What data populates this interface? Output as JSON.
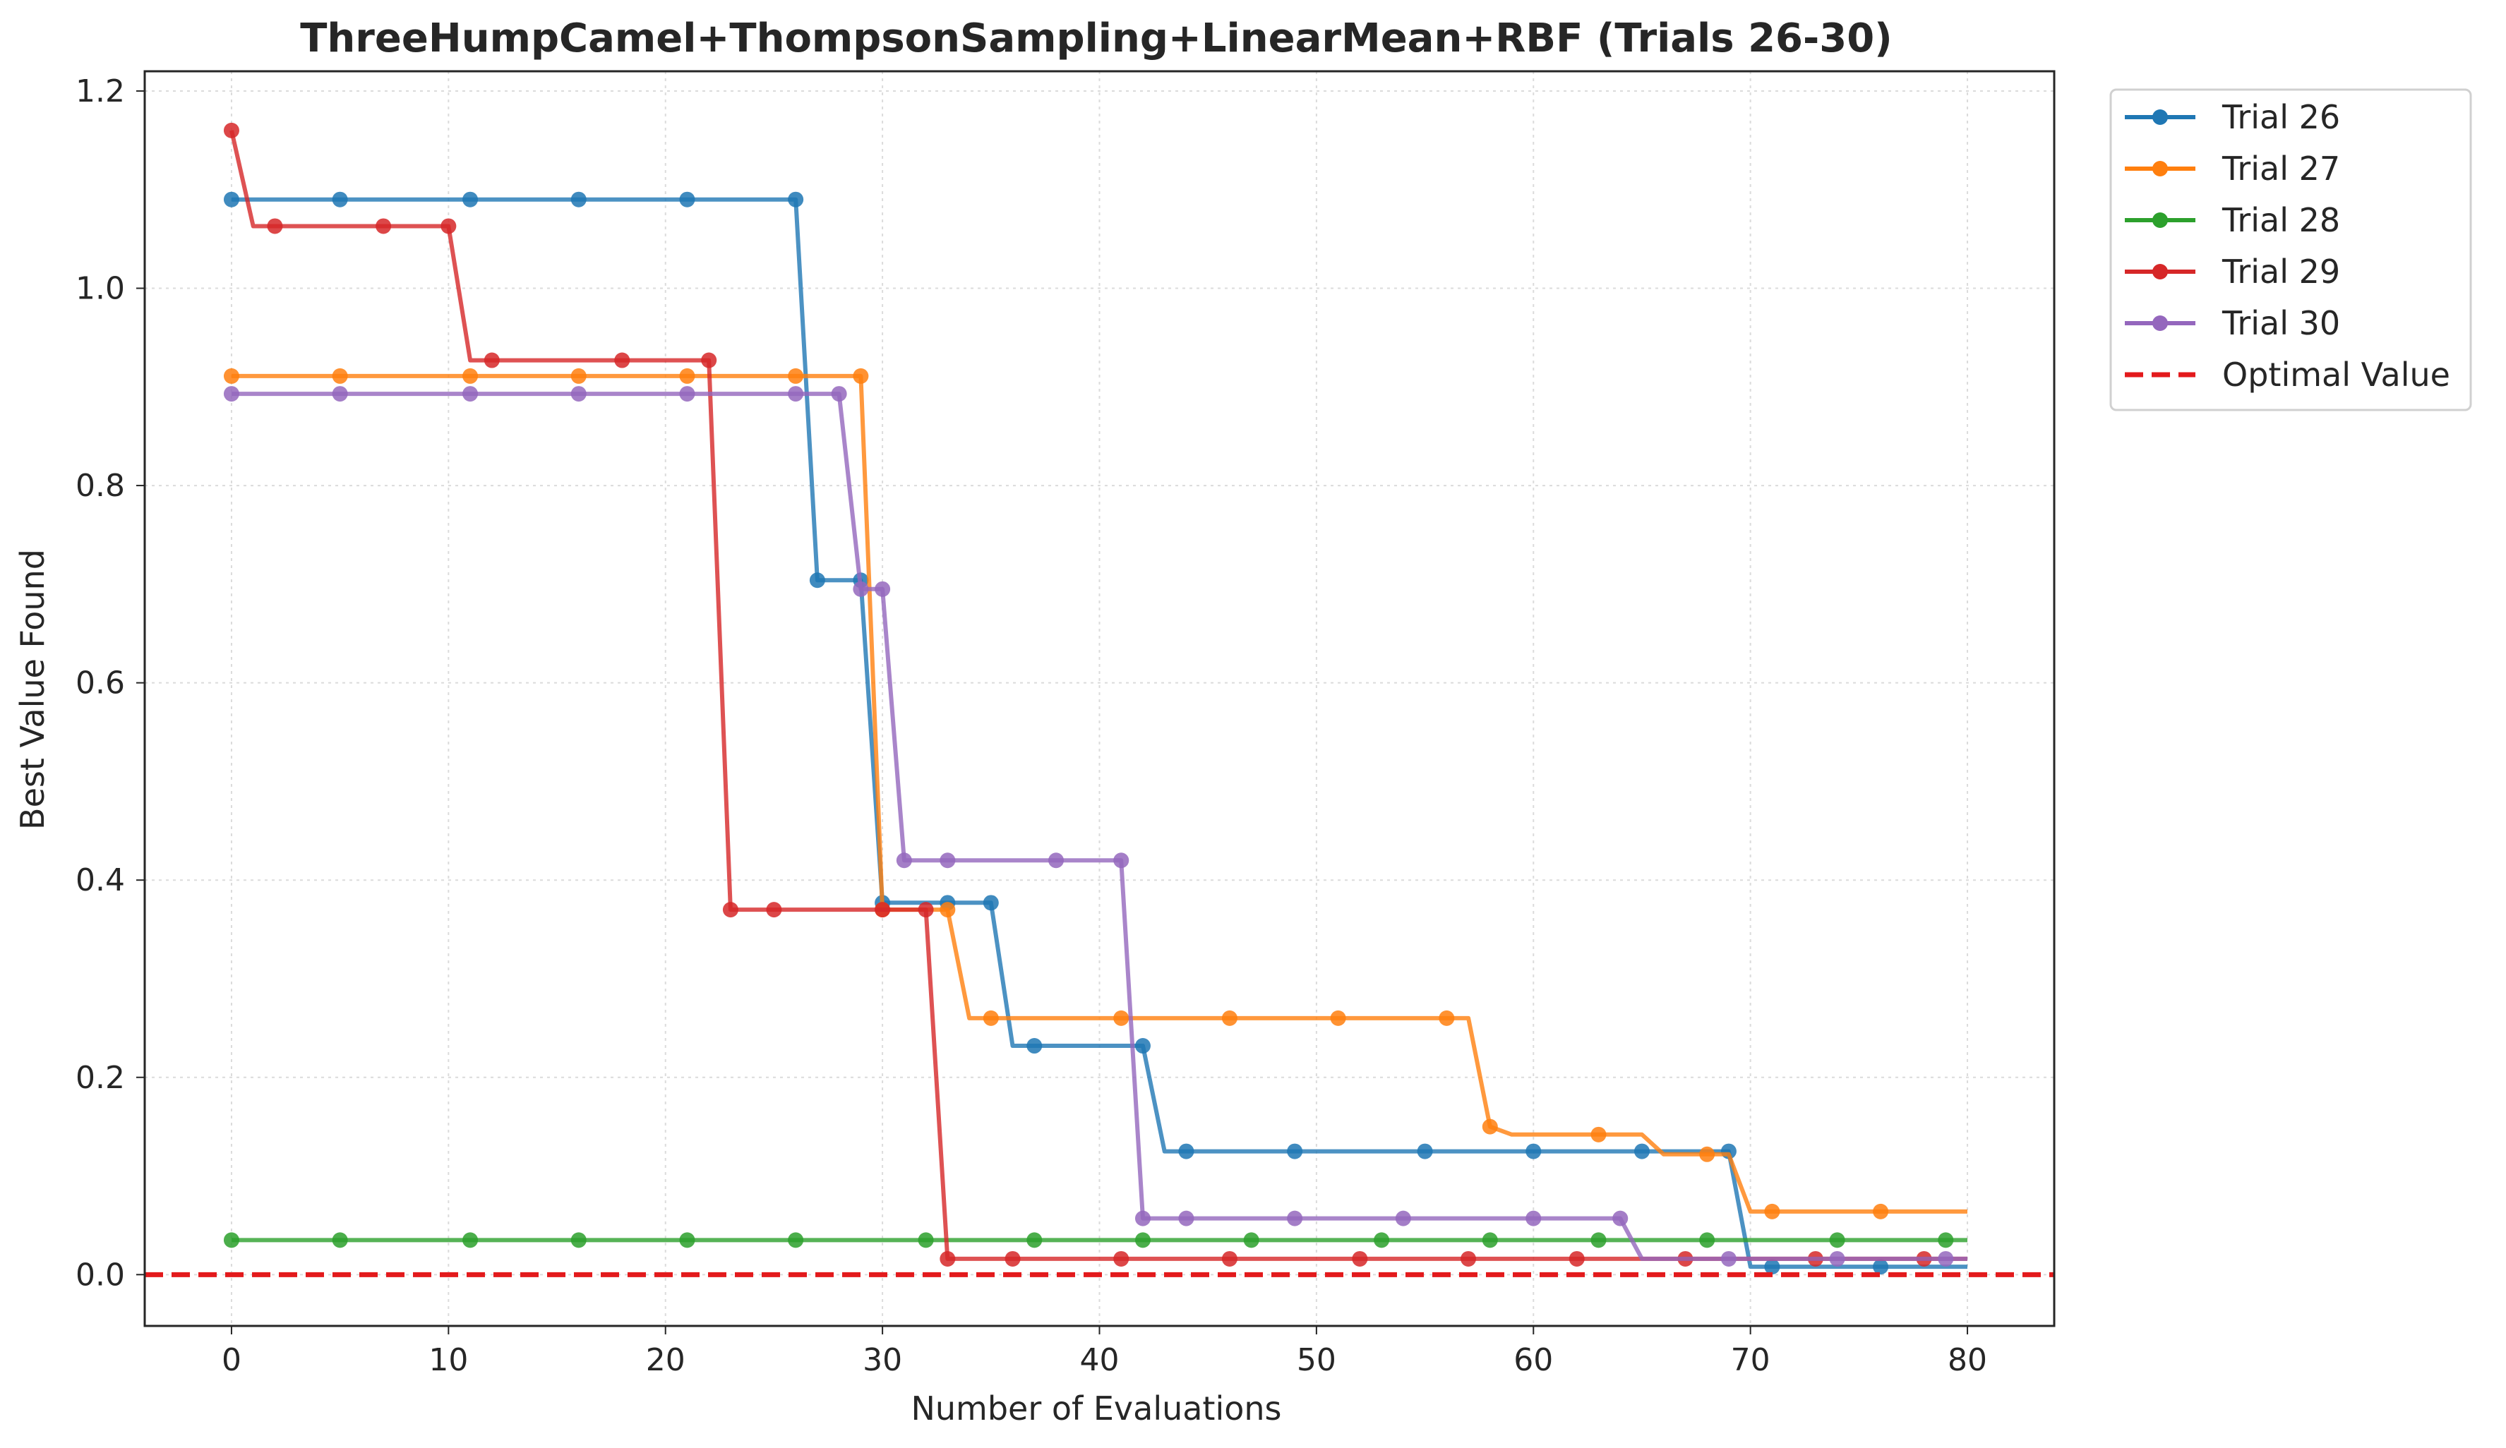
{
  "chart_data": {
    "type": "line",
    "title": "ThreeHumpCamel+ThompsonSampling+LinearMean+RBF (Trials 26-30)",
    "xlabel": "Number of Evaluations",
    "ylabel": "Best Value Found",
    "xlim": [
      -4,
      84
    ],
    "ylim": [
      -0.052,
      1.22
    ],
    "xticks": [
      0,
      10,
      20,
      30,
      40,
      50,
      60,
      70,
      80
    ],
    "yticks": [
      0.0,
      0.2,
      0.4,
      0.6,
      0.8,
      1.0,
      1.2
    ],
    "xtick_labels": [
      "0",
      "10",
      "20",
      "30",
      "40",
      "50",
      "60",
      "70",
      "80"
    ],
    "ytick_labels": [
      "0.0",
      "0.2",
      "0.4",
      "0.6",
      "0.8",
      "1.0",
      "1.2"
    ],
    "grid": true,
    "legend_position": "outside-top-right",
    "series": [
      {
        "name": "Trial 26",
        "color": "#1f77b4",
        "points": [
          [
            0,
            1.09
          ],
          [
            26,
            1.09
          ],
          [
            27,
            0.704
          ],
          [
            29,
            0.704
          ],
          [
            30,
            0.377
          ],
          [
            35,
            0.377
          ],
          [
            36,
            0.232
          ],
          [
            42,
            0.232
          ],
          [
            43,
            0.125
          ],
          [
            69,
            0.125
          ],
          [
            70,
            0.008
          ],
          [
            80,
            0.008
          ]
        ],
        "markers": [
          [
            0,
            1.09
          ],
          [
            5,
            1.09
          ],
          [
            11,
            1.09
          ],
          [
            16,
            1.09
          ],
          [
            21,
            1.09
          ],
          [
            26,
            1.09
          ],
          [
            27,
            0.704
          ],
          [
            29,
            0.704
          ],
          [
            30,
            0.377
          ],
          [
            33,
            0.377
          ],
          [
            35,
            0.377
          ],
          [
            37,
            0.232
          ],
          [
            42,
            0.232
          ],
          [
            44,
            0.125
          ],
          [
            49,
            0.125
          ],
          [
            55,
            0.125
          ],
          [
            60,
            0.125
          ],
          [
            65,
            0.125
          ],
          [
            69,
            0.125
          ],
          [
            71,
            0.008
          ],
          [
            76,
            0.008
          ]
        ]
      },
      {
        "name": "Trial 27",
        "color": "#ff7f0e",
        "points": [
          [
            0,
            0.911
          ],
          [
            29,
            0.911
          ],
          [
            30,
            0.37
          ],
          [
            33,
            0.37
          ],
          [
            34,
            0.26
          ],
          [
            57,
            0.26
          ],
          [
            58,
            0.15
          ],
          [
            59,
            0.142
          ],
          [
            65,
            0.142
          ],
          [
            66,
            0.122
          ],
          [
            69,
            0.122
          ],
          [
            70,
            0.064
          ],
          [
            80,
            0.064
          ]
        ],
        "markers": [
          [
            0,
            0.911
          ],
          [
            5,
            0.911
          ],
          [
            11,
            0.911
          ],
          [
            16,
            0.911
          ],
          [
            21,
            0.911
          ],
          [
            26,
            0.911
          ],
          [
            29,
            0.911
          ],
          [
            30,
            0.37
          ],
          [
            33,
            0.37
          ],
          [
            35,
            0.26
          ],
          [
            41,
            0.26
          ],
          [
            46,
            0.26
          ],
          [
            51,
            0.26
          ],
          [
            56,
            0.26
          ],
          [
            58,
            0.15
          ],
          [
            63,
            0.142
          ],
          [
            68,
            0.122
          ],
          [
            71,
            0.064
          ],
          [
            76,
            0.064
          ]
        ]
      },
      {
        "name": "Trial 28",
        "color": "#2ca02c",
        "points": [
          [
            0,
            0.035
          ],
          [
            80,
            0.035
          ]
        ],
        "markers": [
          [
            0,
            0.035
          ],
          [
            5,
            0.035
          ],
          [
            11,
            0.035
          ],
          [
            16,
            0.035
          ],
          [
            21,
            0.035
          ],
          [
            26,
            0.035
          ],
          [
            32,
            0.035
          ],
          [
            37,
            0.035
          ],
          [
            42,
            0.035
          ],
          [
            47,
            0.035
          ],
          [
            53,
            0.035
          ],
          [
            58,
            0.035
          ],
          [
            63,
            0.035
          ],
          [
            68,
            0.035
          ],
          [
            74,
            0.035
          ],
          [
            79,
            0.035
          ]
        ]
      },
      {
        "name": "Trial 29",
        "color": "#d62728",
        "points": [
          [
            0,
            1.16
          ],
          [
            1,
            1.063
          ],
          [
            10,
            1.063
          ],
          [
            11,
            0.927
          ],
          [
            22,
            0.927
          ],
          [
            23,
            0.37
          ],
          [
            32,
            0.37
          ],
          [
            33,
            0.016
          ],
          [
            80,
            0.016
          ]
        ],
        "markers": [
          [
            0,
            1.16
          ],
          [
            2,
            1.063
          ],
          [
            7,
            1.063
          ],
          [
            10,
            1.063
          ],
          [
            12,
            0.927
          ],
          [
            18,
            0.927
          ],
          [
            22,
            0.927
          ],
          [
            23,
            0.37
          ],
          [
            25,
            0.37
          ],
          [
            30,
            0.37
          ],
          [
            32,
            0.37
          ],
          [
            33,
            0.016
          ],
          [
            36,
            0.016
          ],
          [
            41,
            0.016
          ],
          [
            46,
            0.016
          ],
          [
            52,
            0.016
          ],
          [
            57,
            0.016
          ],
          [
            62,
            0.016
          ],
          [
            67,
            0.016
          ],
          [
            73,
            0.016
          ],
          [
            78,
            0.016
          ]
        ]
      },
      {
        "name": "Trial 30",
        "color": "#9467bd",
        "points": [
          [
            0,
            0.893
          ],
          [
            28,
            0.893
          ],
          [
            29,
            0.695
          ],
          [
            30,
            0.695
          ],
          [
            31,
            0.42
          ],
          [
            41,
            0.42
          ],
          [
            42,
            0.057
          ],
          [
            64,
            0.057
          ],
          [
            65,
            0.016
          ],
          [
            80,
            0.016
          ]
        ],
        "markers": [
          [
            0,
            0.893
          ],
          [
            5,
            0.893
          ],
          [
            11,
            0.893
          ],
          [
            16,
            0.893
          ],
          [
            21,
            0.893
          ],
          [
            26,
            0.893
          ],
          [
            28,
            0.893
          ],
          [
            29,
            0.695
          ],
          [
            30,
            0.695
          ],
          [
            31,
            0.42
          ],
          [
            33,
            0.42
          ],
          [
            38,
            0.42
          ],
          [
            41,
            0.42
          ],
          [
            42,
            0.057
          ],
          [
            44,
            0.057
          ],
          [
            49,
            0.057
          ],
          [
            54,
            0.057
          ],
          [
            60,
            0.057
          ],
          [
            64,
            0.057
          ],
          [
            69,
            0.016
          ],
          [
            74,
            0.016
          ],
          [
            79,
            0.016
          ]
        ]
      }
    ],
    "reference_line": {
      "name": "Optimal Value",
      "y": 0.0,
      "color": "#e31a1c",
      "style": "dashed"
    }
  }
}
